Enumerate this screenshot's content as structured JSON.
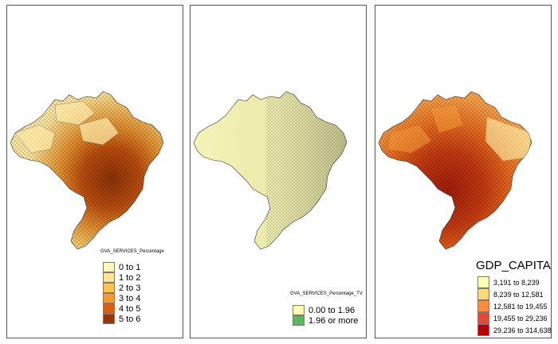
{
  "panels": [
    {
      "legend_title": "GVA_SERVICES_Percentage",
      "legend": [
        {
          "label": "0 to 1",
          "color": "#fff7bc"
        },
        {
          "label": "1 to 2",
          "color": "#fee391"
        },
        {
          "label": "2 to 3",
          "color": "#fec44f"
        },
        {
          "label": "3 to 4",
          "color": "#fe9929"
        },
        {
          "label": "4 to 5",
          "color": "#d95f0e"
        },
        {
          "label": "5 to 6",
          "color": "#993404"
        }
      ]
    },
    {
      "legend_title": "GVA_SERVICES_Percentage_TV",
      "legend": [
        {
          "label": "0.00 to 1.96",
          "color": "#ffffb3"
        },
        {
          "label": "1.96 or more",
          "color": "#5cb85c"
        }
      ]
    },
    {
      "legend_title": "GDP_CAPITA",
      "legend": [
        {
          "label": "3,191 to 8,239",
          "color": "#ffffb2"
        },
        {
          "label": "8,239 to 12,581",
          "color": "#fed976"
        },
        {
          "label": "12,581 to 19,455",
          "color": "#fd8d3c"
        },
        {
          "label": "19,455 to 29,236",
          "color": "#e34a33"
        },
        {
          "label": "29,236 to 314,638",
          "color": "#b30000"
        }
      ]
    }
  ]
}
